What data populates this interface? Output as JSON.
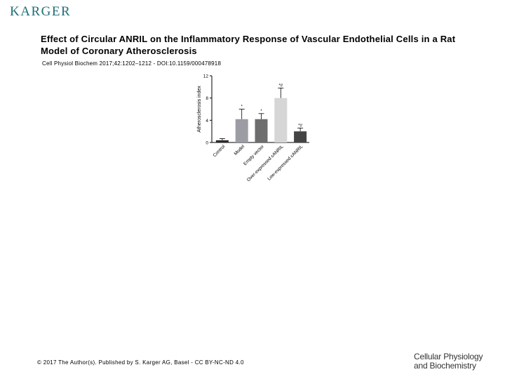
{
  "publisher_logo": "KARGER",
  "slide": {
    "title": "Effect of Circular ANRIL on the Inflammatory Response of Vascular Endothelial Cells in a Rat Model of Coronary Atherosclerosis",
    "citation": "Cell Physiol Biochem 2017;42:1202–1212 - DOI:10.1159/000478918"
  },
  "footer": {
    "copyright": "© 2017 The Author(s). Published by S. Karger AG, Basel - CC BY-NC-ND 4.0",
    "journal_line1": "Cellular Physiology",
    "journal_line2": "and Biochemistry"
  },
  "colors": {
    "logo": "#1f6f78"
  },
  "chart_data": {
    "type": "bar",
    "title": "",
    "xlabel": "",
    "ylabel": "Atherosclerosis index",
    "ylim": [
      0,
      12
    ],
    "yticks": [
      "0",
      "4",
      "8",
      "12"
    ],
    "categories": [
      "Control",
      "Model",
      "Empty vector",
      "Over-expressed cANRIL",
      "Low-expressed cANRIL"
    ],
    "values": [
      0.4,
      4.2,
      4.2,
      8.0,
      2.0
    ],
    "errors": [
      0.3,
      1.8,
      1.0,
      1.8,
      0.6
    ],
    "annotations": [
      "",
      "*",
      "*",
      "*#",
      "*#"
    ],
    "colors": [
      "#2b2b2b",
      "#9c9ca4",
      "#6e6e6e",
      "#d6d6d6",
      "#444444"
    ],
    "grid": false
  }
}
